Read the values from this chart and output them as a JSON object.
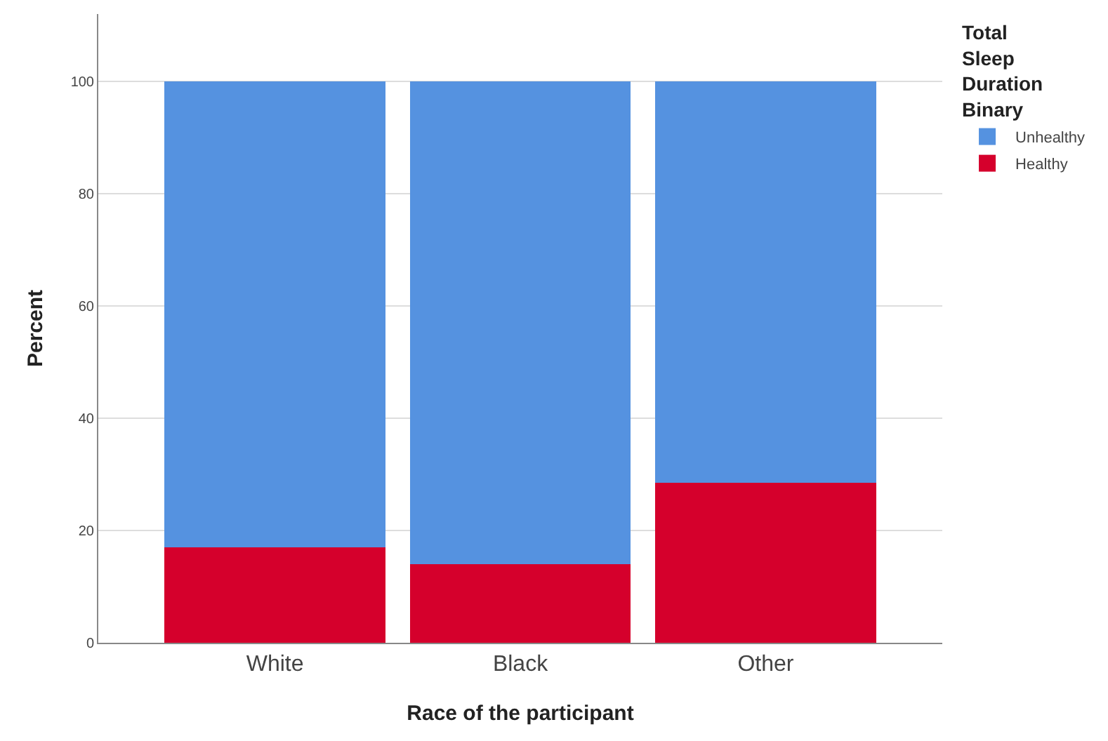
{
  "chart_data": {
    "type": "bar",
    "stacked": true,
    "xlabel": "Race of the participant",
    "ylabel": "Percent",
    "legend_title": "Total Sleep Duration Binary",
    "categories": [
      "White",
      "Black",
      "Other"
    ],
    "series": [
      {
        "name": "Healthy",
        "color": "#d5002c",
        "values": [
          17,
          14,
          28.5
        ]
      },
      {
        "name": "Unhealthy",
        "color": "#5592e0",
        "values": [
          83,
          86,
          71.5
        ]
      }
    ],
    "ylim": [
      0,
      112
    ],
    "yticks": [
      0,
      20,
      40,
      60,
      80,
      100
    ],
    "grid": "y",
    "legend": "top right"
  }
}
